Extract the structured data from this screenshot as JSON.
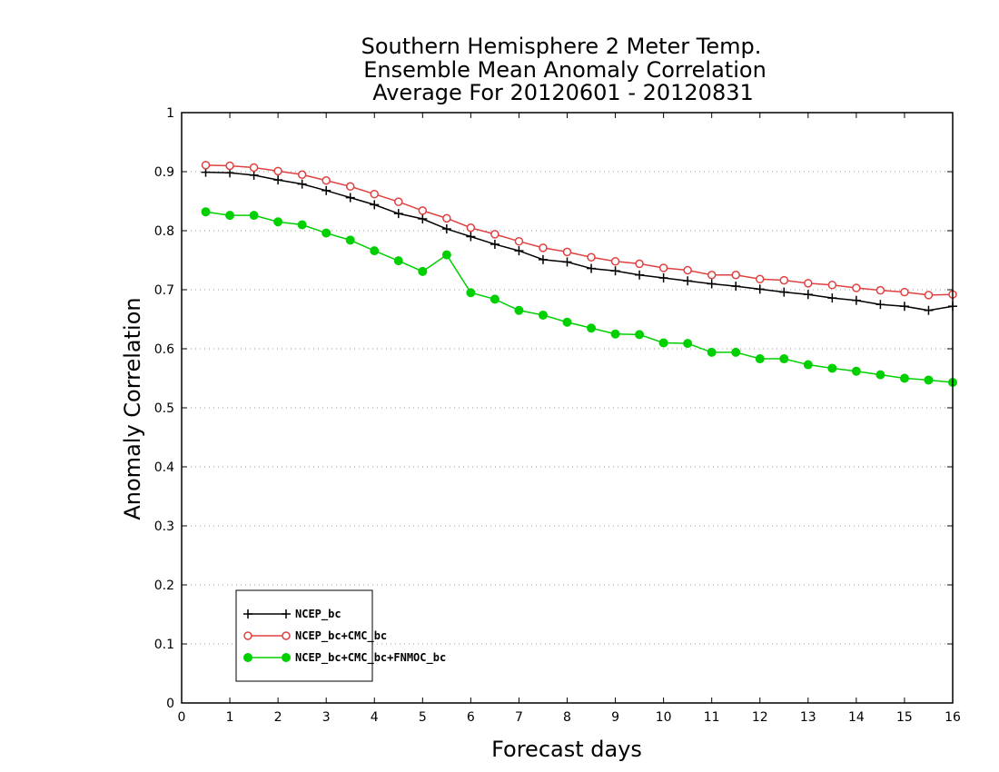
{
  "chart_data": {
    "type": "line",
    "title_lines": [
      "Southern Hemisphere 2 Meter Temp.",
      "Ensemble Mean Anomaly Correlation",
      "Average For 20120601 - 20120831"
    ],
    "xlabel": "Forecast days",
    "ylabel": "Anomaly Correlation",
    "xlim": [
      0,
      16
    ],
    "ylim": [
      0,
      1
    ],
    "x_ticks": [
      "0",
      "1",
      "2",
      "3",
      "4",
      "5",
      "6",
      "7",
      "8",
      "9",
      "10",
      "11",
      "12",
      "13",
      "14",
      "15",
      "16"
    ],
    "y_ticks": [
      "0",
      "0.1",
      "0.2",
      "0.3",
      "0.4",
      "0.5",
      "0.6",
      "0.7",
      "0.8",
      "0.9",
      "1"
    ],
    "grid": "horizontal-dotted",
    "legend_position": "bottom-left",
    "x": [
      0.5,
      1,
      1.5,
      2,
      2.5,
      3,
      3.5,
      4,
      4.5,
      5,
      5.5,
      6,
      6.5,
      7,
      7.5,
      8,
      8.5,
      9,
      9.5,
      10,
      10.5,
      11,
      11.5,
      12,
      12.5,
      13,
      13.5,
      14,
      14.5,
      15,
      15.5,
      16
    ],
    "series": [
      {
        "name": "NCEP_bc",
        "color": "#000000",
        "marker": "plus",
        "values": [
          0.899,
          0.898,
          0.894,
          0.886,
          0.879,
          0.868,
          0.856,
          0.844,
          0.829,
          0.82,
          0.803,
          0.79,
          0.777,
          0.766,
          0.751,
          0.747,
          0.736,
          0.732,
          0.725,
          0.72,
          0.715,
          0.71,
          0.706,
          0.701,
          0.696,
          0.692,
          0.686,
          0.682,
          0.675,
          0.672,
          0.665,
          0.672
        ]
      },
      {
        "name": "NCEP_bc+CMC_bc",
        "color": "#e04040",
        "marker": "open-circle",
        "values": [
          0.911,
          0.91,
          0.907,
          0.901,
          0.895,
          0.885,
          0.875,
          0.862,
          0.849,
          0.834,
          0.821,
          0.805,
          0.794,
          0.782,
          0.771,
          0.764,
          0.755,
          0.748,
          0.744,
          0.737,
          0.733,
          0.725,
          0.725,
          0.718,
          0.716,
          0.711,
          0.708,
          0.703,
          0.699,
          0.696,
          0.691,
          0.692
        ]
      },
      {
        "name": "NCEP_bc+CMC_bc+FNMOC_bc",
        "color": "#00d000",
        "marker": "filled-circle",
        "values": [
          0.832,
          0.826,
          0.826,
          0.815,
          0.81,
          0.796,
          0.784,
          0.766,
          0.749,
          0.731,
          0.759,
          0.695,
          0.684,
          0.665,
          0.657,
          0.645,
          0.635,
          0.625,
          0.624,
          0.61,
          0.609,
          0.594,
          0.594,
          0.583,
          0.583,
          0.573,
          0.567,
          0.562,
          0.556,
          0.55,
          0.547,
          0.543
        ]
      }
    ]
  }
}
